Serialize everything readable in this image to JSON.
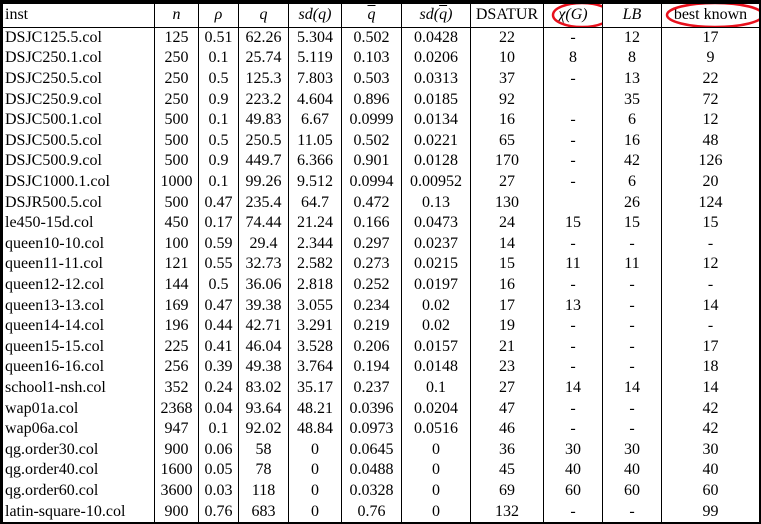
{
  "headers": {
    "inst": "inst",
    "n": "n",
    "rho": "ρ",
    "q": "q",
    "sdq": "sd(q)",
    "qbar": "q",
    "sdqbar_pre": "sd(",
    "sdqbar_q": "q",
    "sdqbar_post": ")",
    "dsatur": "DSATUR",
    "chi_sym": "χ",
    "chi_arg": "(G)",
    "lb": "LB",
    "best": "best known"
  },
  "rows": [
    [
      "DSJC125.5.col",
      "125",
      "0.51",
      "62.26",
      "5.304",
      "0.502",
      "0.0428",
      "22",
      "-",
      "12",
      "17"
    ],
    [
      "DSJC250.1.col",
      "250",
      "0.1",
      "25.74",
      "5.119",
      "0.103",
      "0.0206",
      "10",
      "8",
      "8",
      "9"
    ],
    [
      "DSJC250.5.col",
      "250",
      "0.5",
      "125.3",
      "7.803",
      "0.503",
      "0.0313",
      "37",
      "-",
      "13",
      "22"
    ],
    [
      "DSJC250.9.col",
      "250",
      "0.9",
      "223.2",
      "4.604",
      "0.896",
      "0.0185",
      "92",
      "",
      "35",
      "72"
    ],
    [
      "DSJC500.1.col",
      "500",
      "0.1",
      "49.83",
      "6.67",
      "0.0999",
      "0.0134",
      "16",
      "-",
      "6",
      "12"
    ],
    [
      "DSJC500.5.col",
      "500",
      "0.5",
      "250.5",
      "11.05",
      "0.502",
      "0.0221",
      "65",
      "-",
      "16",
      "48"
    ],
    [
      "DSJC500.9.col",
      "500",
      "0.9",
      "449.7",
      "6.366",
      "0.901",
      "0.0128",
      "170",
      "-",
      "42",
      "126"
    ],
    [
      "DSJC1000.1.col",
      "1000",
      "0.1",
      "99.26",
      "9.512",
      "0.0994",
      "0.00952",
      "27",
      "-",
      "6",
      "20"
    ],
    [
      "DSJR500.5.col",
      "500",
      "0.47",
      "235.4",
      "64.7",
      "0.472",
      "0.13",
      "130",
      "",
      "26",
      "124"
    ],
    [
      "le450-15d.col",
      "450",
      "0.17",
      "74.44",
      "21.24",
      "0.166",
      "0.0473",
      "24",
      "15",
      "15",
      "15"
    ],
    [
      "queen10-10.col",
      "100",
      "0.59",
      "29.4",
      "2.344",
      "0.297",
      "0.0237",
      "14",
      "-",
      "-",
      "-"
    ],
    [
      "queen11-11.col",
      "121",
      "0.55",
      "32.73",
      "2.582",
      "0.273",
      "0.0215",
      "15",
      "11",
      "11",
      "12"
    ],
    [
      "queen12-12.col",
      "144",
      "0.5",
      "36.06",
      "2.818",
      "0.252",
      "0.0197",
      "16",
      "-",
      "-",
      "-"
    ],
    [
      "queen13-13.col",
      "169",
      "0.47",
      "39.38",
      "3.055",
      "0.234",
      "0.02",
      "17",
      "13",
      "-",
      "14"
    ],
    [
      "queen14-14.col",
      "196",
      "0.44",
      "42.71",
      "3.291",
      "0.219",
      "0.02",
      "19",
      "-",
      "-",
      "-"
    ],
    [
      "queen15-15.col",
      "225",
      "0.41",
      "46.04",
      "3.528",
      "0.206",
      "0.0157",
      "21",
      "-",
      "-",
      "17"
    ],
    [
      "queen16-16.col",
      "256",
      "0.39",
      "49.38",
      "3.764",
      "0.194",
      "0.0148",
      "23",
      "-",
      "-",
      "18"
    ],
    [
      "school1-nsh.col",
      "352",
      "0.24",
      "83.02",
      "35.17",
      "0.237",
      "0.1",
      "27",
      "14",
      "14",
      "14"
    ],
    [
      "wap01a.col",
      "2368",
      "0.04",
      "93.64",
      "48.21",
      "0.0396",
      "0.0204",
      "47",
      "-",
      "-",
      "42"
    ],
    [
      "wap06a.col",
      "947",
      "0.1",
      "92.02",
      "48.84",
      "0.0973",
      "0.0516",
      "46",
      "-",
      "-",
      "42"
    ],
    [
      "qg.order30.col",
      "900",
      "0.06",
      "58",
      "0",
      "0.0645",
      "0",
      "36",
      "30",
      "30",
      "30"
    ],
    [
      "qg.order40.col",
      "1600",
      "0.05",
      "78",
      "0",
      "0.0488",
      "0",
      "45",
      "40",
      "40",
      "40"
    ],
    [
      "qg.order60.col",
      "3600",
      "0.03",
      "118",
      "0",
      "0.0328",
      "0",
      "69",
      "60",
      "60",
      "60"
    ],
    [
      "latin-square-10.col",
      "900",
      "0.76",
      "683",
      "0",
      "0.76",
      "0",
      "132",
      "-",
      "-",
      "99"
    ]
  ],
  "annotation_color": "#e8101c"
}
